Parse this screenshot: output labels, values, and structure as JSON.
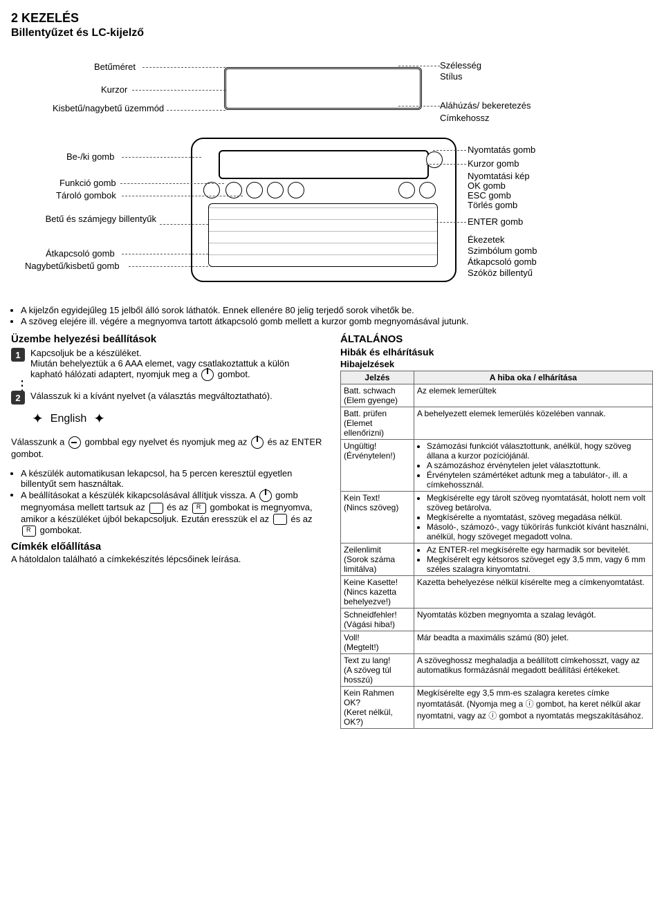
{
  "section_no": "2  KEZELÉS",
  "subtitle": "Billentyűzet és LC-kijelző",
  "diagram1": {
    "left": [
      "Betűméret",
      "Kurzor",
      "Kisbetű/nagybetű üzemmód"
    ],
    "right": [
      "Szélesség",
      "Stílus",
      "Aláhúzás/ bekeretezés",
      "Címkehossz"
    ]
  },
  "diagram2": {
    "left": [
      "Be-/ki gomb",
      "Funkció gomb",
      "Tároló gombok",
      "Betű és számjegy billentyűk",
      "Átkapcsoló gomb",
      "Nagybetű/kisbetű gomb"
    ],
    "right": [
      "Nyomtatás gomb",
      "Kurzor gomb",
      "Nyomtatási kép",
      "OK gomb",
      "ESC gomb",
      "Törlés gomb",
      "ENTER gomb",
      "Ékezetek",
      "Szimbólum gomb",
      "Átkapcsoló gomb",
      "Szóköz billentyű"
    ]
  },
  "notes": [
    "A kijelzőn egyidejűleg 15 jelből álló sorok láthatók. Ennek ellenére 80 jelig terjedő sorok vihetők be.",
    "A szöveg elejére ill. végére a megnyomva tartott átkapcsoló gomb mellett a kurzor gomb megnyomásával jutunk."
  ],
  "startup": {
    "title": "Üzembe helyezési beállítások",
    "step1_a": "Kapcsoljuk be a készüléket.",
    "step1_b": "Miután behelyeztük a 6 AAA elemet, vagy csatlakoztattuk a külön kapható hálózati adaptert, nyomjuk meg a",
    "step1_c": "gombot.",
    "step2": "Válasszuk ki a kívánt nyelvet (a választás megváltoztatható).",
    "english": "English",
    "sel_a": "Válasszunk a",
    "sel_b": "gombbal egy nyelvet és nyomjuk meg az",
    "sel_c": "és az ENTER gombot.",
    "bul1": "A készülék automatikusan lekapcsol, ha 5 percen keresztül egyetlen billentyűt sem használtak.",
    "bul2_a": "A beállításokat a készülék kikapcsolásával állítjuk vissza. A",
    "bul2_b": "gomb megnyomása mellett tartsuk az",
    "bul2_c": "és az",
    "bul2_d": "gombokat is megnyomva, amikor a készüléket újból bekapcsoljuk. Ezután eresszük el az",
    "bul2_e": "és az",
    "bul2_f": "gombokat.",
    "labels_title": "Címkék előállítása",
    "labels_text": "A hátoldalon található a címkekészítés lépcsőinek leírása."
  },
  "general": {
    "title": "ÁLTALÁNOS",
    "sub": "Hibák és elhárításuk",
    "tbltitle": "Hibajelzések",
    "h1": "Jelzés",
    "h2": "A hiba oka / elhárítása",
    "rows": [
      {
        "c1": "Batt. schwach\n(Elem gyenge)",
        "c2": "Az elemek lemerültek"
      },
      {
        "c1": "Batt. prüfen\n(Elemet ellenőrizni)",
        "c2": "A behelyezett elemek lemerülés közelében vannak."
      },
      {
        "c1": "Ungültig!\n(Érvénytelen!)",
        "c2": [
          "Számozási funkciót választottunk, anélkül, hogy szöveg állana a kurzor pozíciójánál.",
          "A számozáshoz érvénytelen jelet választottunk.",
          "Érvénytelen számértéket adtunk meg a tabulátor-, ill. a címkehossznál."
        ]
      },
      {
        "c1": "Kein Text!\n(Nincs szöveg)",
        "c2": [
          "Megkísérelte egy tárolt szöveg nyomtatását, holott nem volt szöveg betárolva.",
          "Megkísérelte a nyomtatást, szöveg megadása nélkül.",
          "Másoló-, számozó-, vagy tükörírás funkciót kívánt használni, anélkül, hogy szöveget megadott volna."
        ]
      },
      {
        "c1": "Zeilenlimit\n(Sorok száma limitálva)",
        "c2": [
          "Az ENTER-rel megkísérelte egy harmadik sor bevitelét.",
          "Megkísérelt egy kétsoros szöveget egy 3,5 mm, vagy 6 mm széles szalagra kinyomtatni."
        ]
      },
      {
        "c1": "Keine Kasette!\n(Nincs kazetta behelyezve!)",
        "c2": "Kazetta behelyezése nélkül kísérelte meg a címkenyomtatást."
      },
      {
        "c1": "Schneidfehler!\n(Vágási hiba!)",
        "c2": "Nyomtatás közben megnyomta a szalag levágót."
      },
      {
        "c1": "Voll!\n(Megtelt!)",
        "c2": "Már beadta a maximális számú (80) jelet."
      },
      {
        "c1": "Text zu lang!\n(A szöveg túl hosszú)",
        "c2": "A szöveghossz meghaladja a beállított címkehosszt, vagy az automatikus formázásnál megadott beállítási értékeket."
      },
      {
        "c1": "Kein Rahmen OK?\n(Keret nélkül, OK?)",
        "c2": "Megkísérelte egy 3,5 mm-es szalagra keretes címke nyomtatását. (Nyomja meg a ⓘ gombot, ha keret nélkül akar nyomtatni, vagy az ⓘ gombot a nyomtatás megszakításához."
      }
    ]
  }
}
